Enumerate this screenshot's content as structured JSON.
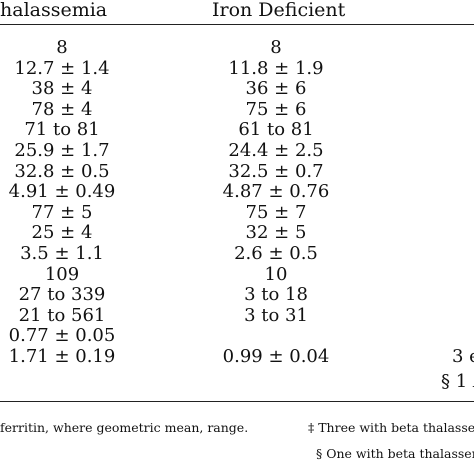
{
  "headers": {
    "col1": "halassemia",
    "col2": "Iron Deficient"
  },
  "columns": {
    "col1": [
      "8",
      "12.7 ± 1.4",
      "38 ± 4",
      "78 ± 4",
      "71 to 81",
      "25.9 ± 1.7",
      "32.8 ± 0.5",
      "4.91 ± 0.49",
      "77 ± 5",
      "25 ± 4",
      "3.5 ± 1.1",
      "109",
      "27 to 339",
      "21 to 561",
      "0.77 ± 0.05",
      "1.71 ± 0.19"
    ],
    "col2": [
      "8",
      "11.8 ± 1.9",
      "36 ± 6",
      "75 ± 6",
      "61 to 81",
      "24.4 ± 2.5",
      "32.5 ± 0.7",
      "4.87 ± 0.76",
      "75 ± 7",
      "32 ± 5",
      "2.6 ± 0.5",
      "10",
      "3 to 18",
      "3 to 31",
      "",
      "0.99 ± 0.04"
    ]
  },
  "right_fragments": {
    "row15": "3 e",
    "row16": "§ 1 A"
  },
  "footnotes": {
    "left": "ferritin, where geometric mean, range.",
    "dagger": "‡ Three with beta thalasser",
    "section": "§ One with beta thalassemi"
  }
}
